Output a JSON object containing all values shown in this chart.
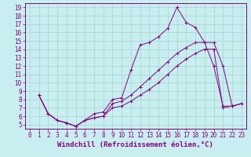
{
  "xlabel": "Windchill (Refroidissement éolien,°C)",
  "bg_color": "#c8eef0",
  "grid_color": "#a0d8d0",
  "line_color": "#880088",
  "xlim": [
    -0.5,
    23.5
  ],
  "ylim": [
    4.5,
    19.5
  ],
  "yticks": [
    5,
    6,
    7,
    8,
    9,
    10,
    11,
    12,
    13,
    14,
    15,
    16,
    17,
    18,
    19
  ],
  "xticks": [
    0,
    1,
    2,
    3,
    4,
    5,
    6,
    7,
    8,
    9,
    10,
    11,
    12,
    13,
    14,
    15,
    16,
    17,
    18,
    19,
    20,
    21,
    22,
    23
  ],
  "line1_x": [
    1,
    2,
    3,
    4,
    5,
    6,
    7,
    8,
    9,
    10,
    11,
    12,
    13,
    14,
    15,
    16,
    17,
    18,
    19,
    20,
    21,
    22,
    23
  ],
  "line1_y": [
    8.5,
    6.3,
    5.5,
    5.2,
    4.8,
    5.5,
    6.3,
    6.5,
    8.0,
    8.2,
    11.5,
    14.5,
    14.8,
    15.5,
    16.5,
    19.0,
    17.2,
    16.6,
    14.8,
    14.8,
    12.0,
    7.2,
    7.5
  ],
  "line2_x": [
    1,
    2,
    3,
    4,
    5,
    6,
    7,
    8,
    9,
    10,
    11,
    12,
    13,
    14,
    15,
    16,
    17,
    18,
    19,
    20,
    21,
    22,
    23
  ],
  "line2_y": [
    8.5,
    6.3,
    5.5,
    5.2,
    4.8,
    5.5,
    5.8,
    6.0,
    7.5,
    7.8,
    8.5,
    9.5,
    10.5,
    11.5,
    12.5,
    13.5,
    14.2,
    14.8,
    14.8,
    12.0,
    7.2,
    7.2,
    7.5
  ],
  "line3_x": [
    1,
    2,
    3,
    4,
    5,
    6,
    7,
    8,
    9,
    10,
    11,
    12,
    13,
    14,
    15,
    16,
    17,
    18,
    19,
    20,
    21,
    22,
    23
  ],
  "line3_y": [
    8.5,
    6.3,
    5.5,
    5.2,
    4.8,
    5.5,
    5.8,
    6.0,
    7.0,
    7.2,
    7.8,
    8.5,
    9.2,
    10.0,
    11.0,
    12.0,
    12.8,
    13.5,
    14.0,
    14.0,
    7.0,
    7.2,
    7.5
  ],
  "tick_fontsize": 5.5,
  "xlabel_fontsize": 6.5
}
